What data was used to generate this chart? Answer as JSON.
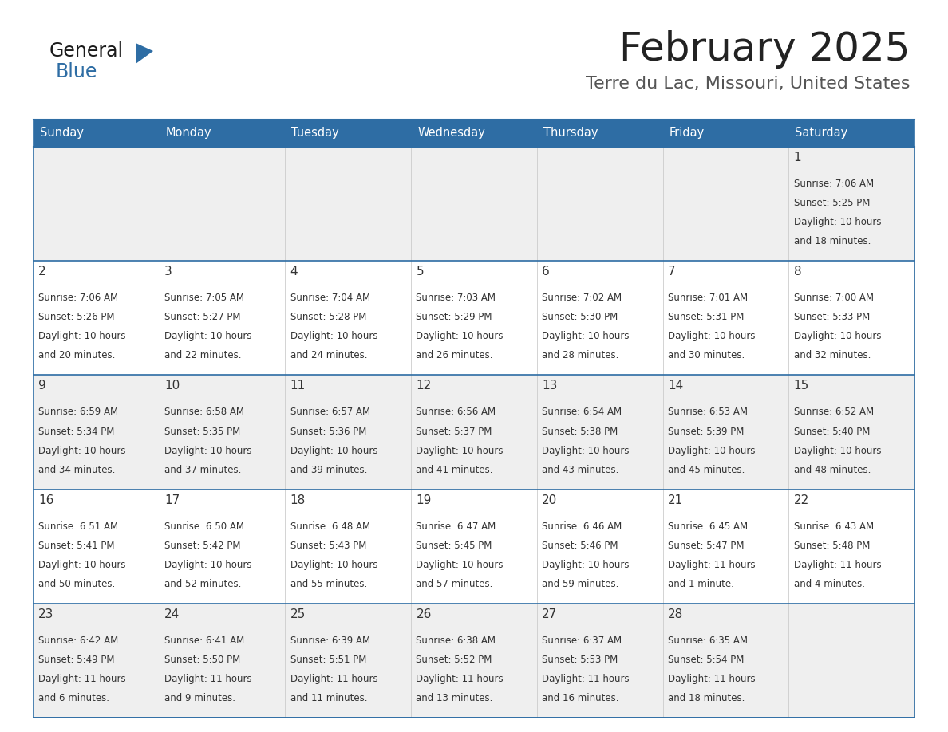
{
  "title": "February 2025",
  "subtitle": "Terre du Lac, Missouri, United States",
  "header_bg_color": "#2E6DA4",
  "header_text_color": "#FFFFFF",
  "day_names": [
    "Sunday",
    "Monday",
    "Tuesday",
    "Wednesday",
    "Thursday",
    "Friday",
    "Saturday"
  ],
  "odd_row_bg": "#EFEFEF",
  "even_row_bg": "#FFFFFF",
  "grid_line_color": "#2E6DA4",
  "title_color": "#222222",
  "subtitle_color": "#555555",
  "day_number_color": "#333333",
  "cell_text_color": "#333333",
  "calendar": [
    [
      {
        "day": null,
        "sunrise": null,
        "sunset": null,
        "daylight": null
      },
      {
        "day": null,
        "sunrise": null,
        "sunset": null,
        "daylight": null
      },
      {
        "day": null,
        "sunrise": null,
        "sunset": null,
        "daylight": null
      },
      {
        "day": null,
        "sunrise": null,
        "sunset": null,
        "daylight": null
      },
      {
        "day": null,
        "sunrise": null,
        "sunset": null,
        "daylight": null
      },
      {
        "day": null,
        "sunrise": null,
        "sunset": null,
        "daylight": null
      },
      {
        "day": 1,
        "sunrise": "7:06 AM",
        "sunset": "5:25 PM",
        "daylight": "10 hours\nand 18 minutes."
      }
    ],
    [
      {
        "day": 2,
        "sunrise": "7:06 AM",
        "sunset": "5:26 PM",
        "daylight": "10 hours\nand 20 minutes."
      },
      {
        "day": 3,
        "sunrise": "7:05 AM",
        "sunset": "5:27 PM",
        "daylight": "10 hours\nand 22 minutes."
      },
      {
        "day": 4,
        "sunrise": "7:04 AM",
        "sunset": "5:28 PM",
        "daylight": "10 hours\nand 24 minutes."
      },
      {
        "day": 5,
        "sunrise": "7:03 AM",
        "sunset": "5:29 PM",
        "daylight": "10 hours\nand 26 minutes."
      },
      {
        "day": 6,
        "sunrise": "7:02 AM",
        "sunset": "5:30 PM",
        "daylight": "10 hours\nand 28 minutes."
      },
      {
        "day": 7,
        "sunrise": "7:01 AM",
        "sunset": "5:31 PM",
        "daylight": "10 hours\nand 30 minutes."
      },
      {
        "day": 8,
        "sunrise": "7:00 AM",
        "sunset": "5:33 PM",
        "daylight": "10 hours\nand 32 minutes."
      }
    ],
    [
      {
        "day": 9,
        "sunrise": "6:59 AM",
        "sunset": "5:34 PM",
        "daylight": "10 hours\nand 34 minutes."
      },
      {
        "day": 10,
        "sunrise": "6:58 AM",
        "sunset": "5:35 PM",
        "daylight": "10 hours\nand 37 minutes."
      },
      {
        "day": 11,
        "sunrise": "6:57 AM",
        "sunset": "5:36 PM",
        "daylight": "10 hours\nand 39 minutes."
      },
      {
        "day": 12,
        "sunrise": "6:56 AM",
        "sunset": "5:37 PM",
        "daylight": "10 hours\nand 41 minutes."
      },
      {
        "day": 13,
        "sunrise": "6:54 AM",
        "sunset": "5:38 PM",
        "daylight": "10 hours\nand 43 minutes."
      },
      {
        "day": 14,
        "sunrise": "6:53 AM",
        "sunset": "5:39 PM",
        "daylight": "10 hours\nand 45 minutes."
      },
      {
        "day": 15,
        "sunrise": "6:52 AM",
        "sunset": "5:40 PM",
        "daylight": "10 hours\nand 48 minutes."
      }
    ],
    [
      {
        "day": 16,
        "sunrise": "6:51 AM",
        "sunset": "5:41 PM",
        "daylight": "10 hours\nand 50 minutes."
      },
      {
        "day": 17,
        "sunrise": "6:50 AM",
        "sunset": "5:42 PM",
        "daylight": "10 hours\nand 52 minutes."
      },
      {
        "day": 18,
        "sunrise": "6:48 AM",
        "sunset": "5:43 PM",
        "daylight": "10 hours\nand 55 minutes."
      },
      {
        "day": 19,
        "sunrise": "6:47 AM",
        "sunset": "5:45 PM",
        "daylight": "10 hours\nand 57 minutes."
      },
      {
        "day": 20,
        "sunrise": "6:46 AM",
        "sunset": "5:46 PM",
        "daylight": "10 hours\nand 59 minutes."
      },
      {
        "day": 21,
        "sunrise": "6:45 AM",
        "sunset": "5:47 PM",
        "daylight": "11 hours\nand 1 minute."
      },
      {
        "day": 22,
        "sunrise": "6:43 AM",
        "sunset": "5:48 PM",
        "daylight": "11 hours\nand 4 minutes."
      }
    ],
    [
      {
        "day": 23,
        "sunrise": "6:42 AM",
        "sunset": "5:49 PM",
        "daylight": "11 hours\nand 6 minutes."
      },
      {
        "day": 24,
        "sunrise": "6:41 AM",
        "sunset": "5:50 PM",
        "daylight": "11 hours\nand 9 minutes."
      },
      {
        "day": 25,
        "sunrise": "6:39 AM",
        "sunset": "5:51 PM",
        "daylight": "11 hours\nand 11 minutes."
      },
      {
        "day": 26,
        "sunrise": "6:38 AM",
        "sunset": "5:52 PM",
        "daylight": "11 hours\nand 13 minutes."
      },
      {
        "day": 27,
        "sunrise": "6:37 AM",
        "sunset": "5:53 PM",
        "daylight": "11 hours\nand 16 minutes."
      },
      {
        "day": 28,
        "sunrise": "6:35 AM",
        "sunset": "5:54 PM",
        "daylight": "11 hours\nand 18 minutes."
      },
      {
        "day": null,
        "sunrise": null,
        "sunset": null,
        "daylight": null
      }
    ]
  ]
}
